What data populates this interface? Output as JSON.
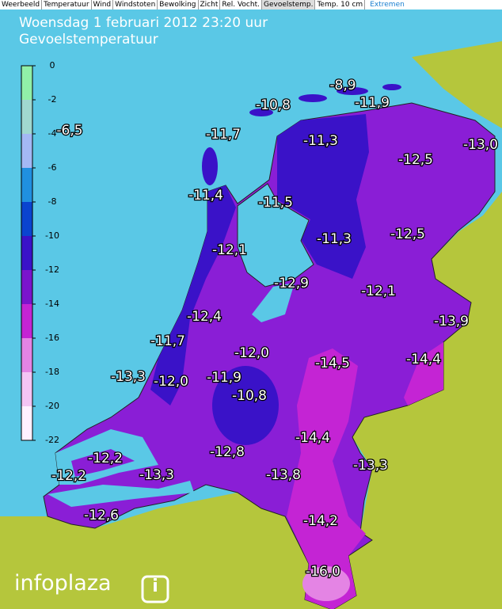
{
  "tabs": [
    "Weerbeeld",
    "Temperatuur",
    "Wind",
    "Windstoten",
    "Bewolking",
    "Zicht",
    "Rel. Vocht.",
    "Gevoelstemp.",
    "Temp. 10 cm",
    "Extremen"
  ],
  "active_tab": 7,
  "header": {
    "title": "Woensdag 1 februari 2012 23:20 uur",
    "subtitle": "Gevoelstemperatuur"
  },
  "legend": {
    "ticks": [
      0,
      -2,
      -4,
      -6,
      -8,
      -10,
      -12,
      -14,
      -16,
      -18,
      -20,
      -22
    ],
    "colors": [
      "#90f0a8",
      "#a0d8d0",
      "#a4b8f4",
      "#2090e0",
      "#0a44d0",
      "#3a12c8",
      "#7a14cc",
      "#c424d4",
      "#e484e4",
      "#f4c4f4",
      "#fff0ff"
    ]
  },
  "stations": [
    "-8,9",
    "-10,8",
    "-11,9",
    "-6,5",
    "-11,7",
    "-11,3",
    "-13,0",
    "-12,5",
    "-11,4",
    "-11,5",
    "-12,5",
    "-11,3",
    "-12,1",
    "-12,9",
    "-12,1",
    "-13,9",
    "-12,4",
    "-11,7",
    "-12,0",
    "-14,5",
    "-14,4",
    "-13,3",
    "-12,0",
    "-11,9",
    "-10,8",
    "-14,4",
    "-13,3",
    "-12,8",
    "-12,2",
    "-12,2",
    "-13,3",
    "-13,8",
    "-14,2",
    "-12,6",
    "-16,0"
  ],
  "logo": "infoplaza"
}
